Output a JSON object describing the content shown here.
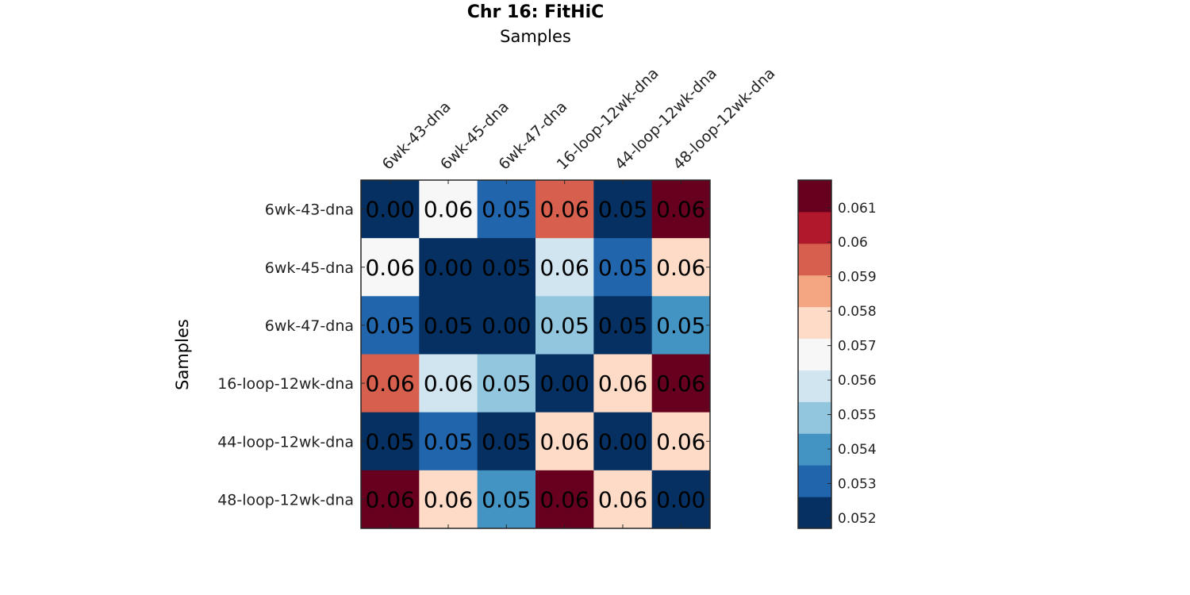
{
  "chart_data": {
    "type": "heatmap",
    "title": "Chr 16: FitHiC",
    "xlabel": "Samples",
    "ylabel": "Samples",
    "x_categories": [
      "6wk-43-dna",
      "6wk-45-dna",
      "6wk-47-dna",
      "16-loop-12wk-dna",
      "44-loop-12wk-dna",
      "48-loop-12wk-dna"
    ],
    "y_categories": [
      "6wk-43-dna",
      "6wk-45-dna",
      "6wk-47-dna",
      "16-loop-12wk-dna",
      "44-loop-12wk-dna",
      "48-loop-12wk-dna"
    ],
    "values": [
      [
        0.0,
        0.0568,
        0.0532,
        0.0592,
        0.052,
        0.0615
      ],
      [
        0.0568,
        0.0,
        0.052,
        0.0555,
        0.0532,
        0.058
      ],
      [
        0.0532,
        0.052,
        0.0,
        0.0548,
        0.052,
        0.054
      ],
      [
        0.0592,
        0.0555,
        0.0548,
        0.0,
        0.058,
        0.0615
      ],
      [
        0.052,
        0.0532,
        0.052,
        0.058,
        0.0,
        0.058
      ],
      [
        0.0615,
        0.058,
        0.054,
        0.0615,
        0.058,
        0.0
      ]
    ],
    "cell_labels": [
      [
        "0.00",
        "0.06",
        "0.05",
        "0.06",
        "0.05",
        "0.06"
      ],
      [
        "0.06",
        "0.00",
        "0.05",
        "0.06",
        "0.05",
        "0.06"
      ],
      [
        "0.05",
        "0.05",
        "0.00",
        "0.05",
        "0.05",
        "0.05"
      ],
      [
        "0.06",
        "0.06",
        "0.05",
        "0.00",
        "0.06",
        "0.06"
      ],
      [
        "0.05",
        "0.05",
        "0.05",
        "0.06",
        "0.00",
        "0.06"
      ],
      [
        "0.06",
        "0.06",
        "0.05",
        "0.06",
        "0.06",
        "0.00"
      ]
    ],
    "colorbar": {
      "range": [
        0.0517,
        0.0618
      ],
      "ticks": [
        0.052,
        0.053,
        0.054,
        0.055,
        0.056,
        0.057,
        0.058,
        0.059,
        0.06,
        0.061
      ],
      "tick_labels": [
        "0.052",
        "0.053",
        "0.054",
        "0.055",
        "0.056",
        "0.057",
        "0.058",
        "0.059",
        "0.06",
        "0.061"
      ],
      "colors": [
        "#053061",
        "#2166ac",
        "#4393c3",
        "#92c5de",
        "#d1e5f0",
        "#f7f7f7",
        "#fddbc7",
        "#f4a582",
        "#d6604d",
        "#b2182b",
        "#67001f"
      ]
    },
    "grid": false,
    "legend": "colorbar-right"
  }
}
